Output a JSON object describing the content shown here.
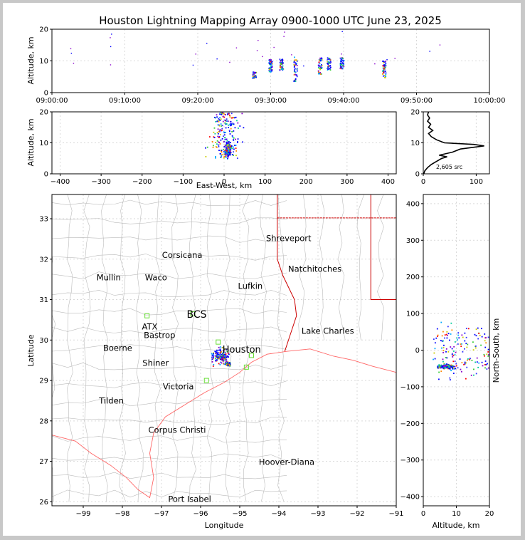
{
  "title": "Houston Lightning Mapping Array 0900-1000 UTC June 23, 2025",
  "colors": {
    "axis": "#000000",
    "grid": "#cccccc",
    "county": "#bbbbbb",
    "state": "#cc0000",
    "coast": "#ff6666",
    "sensor": "#66dd33"
  },
  "chart_data": [
    {
      "id": "time-altitude",
      "type": "scatter",
      "ylabel": "Altitude, km",
      "ylim": [
        0,
        20
      ],
      "yticks": [
        "0",
        "10",
        "20"
      ],
      "xticks": [
        "09:00:00",
        "09:10:00",
        "09:20:00",
        "09:30:00",
        "09:40:00",
        "09:50:00",
        "10:00:00"
      ],
      "xlim_min": [
        0,
        60
      ],
      "clusters": [
        {
          "t": 27.8,
          "alt_min": 4.5,
          "alt_max": 6.5
        },
        {
          "t": 30.0,
          "alt_min": 6.5,
          "alt_max": 10.5
        },
        {
          "t": 31.5,
          "alt_min": 7.0,
          "alt_max": 10.5
        },
        {
          "t": 33.4,
          "alt_min": 3.5,
          "alt_max": 12.0
        },
        {
          "t": 36.8,
          "alt_min": 5.5,
          "alt_max": 11.0
        },
        {
          "t": 38.0,
          "alt_min": 7.0,
          "alt_max": 11.0
        },
        {
          "t": 39.8,
          "alt_min": 7.5,
          "alt_max": 11.0
        },
        {
          "t": 45.6,
          "alt_min": 4.5,
          "alt_max": 10.0
        }
      ]
    },
    {
      "id": "ew-altitude",
      "type": "scatter",
      "xlabel": "East-West, km",
      "ylabel": "Altitude, km",
      "xlim": [
        -420,
        420
      ],
      "ylim": [
        0,
        20
      ],
      "xticks": [
        "−400",
        "−300",
        "−200",
        "−100",
        "0",
        "100",
        "200",
        "300",
        "400"
      ],
      "yticks": [
        "0",
        "10",
        "20"
      ]
    },
    {
      "id": "altitude-histogram",
      "type": "line",
      "xlim": [
        0,
        125
      ],
      "ylim": [
        0,
        20
      ],
      "xticks": [
        "0",
        "100"
      ],
      "yticks": [
        "0",
        "10",
        "20"
      ],
      "annotation": "2,605 src",
      "profile": [
        [
          1,
          0
        ],
        [
          3,
          1
        ],
        [
          8,
          2
        ],
        [
          15,
          3
        ],
        [
          25,
          4
        ],
        [
          35,
          5
        ],
        [
          45,
          5.5
        ],
        [
          30,
          6
        ],
        [
          55,
          7
        ],
        [
          70,
          8
        ],
        [
          115,
          9
        ],
        [
          95,
          9.5
        ],
        [
          40,
          10
        ],
        [
          25,
          11
        ],
        [
          15,
          12
        ],
        [
          10,
          13
        ],
        [
          18,
          14
        ],
        [
          10,
          15
        ],
        [
          14,
          16
        ],
        [
          8,
          17
        ],
        [
          12,
          18
        ],
        [
          8,
          19
        ],
        [
          10,
          20
        ]
      ]
    },
    {
      "id": "plan-map",
      "type": "scatter",
      "xlabel": "Longitude",
      "ylabel": "Latitude",
      "xlim": [
        -99.8,
        -91.0
      ],
      "ylim": [
        25.9,
        33.6
      ],
      "xticks": [
        "−99",
        "−98",
        "−97",
        "−96",
        "−95",
        "−94",
        "−93",
        "−92",
        "−91"
      ],
      "yticks": [
        "26",
        "27",
        "28",
        "29",
        "30",
        "31",
        "32",
        "33"
      ],
      "storm_center": [
        -95.3,
        29.4
      ],
      "cities": [
        {
          "name": "Shreveport",
          "lon": -93.75,
          "lat": 32.52,
          "color": "#000000"
        },
        {
          "name": "Corsicana",
          "lon": -96.47,
          "lat": 32.1,
          "color": "#000000"
        },
        {
          "name": "Natchitoches",
          "lon": -93.08,
          "lat": 31.76,
          "color": "#000000"
        },
        {
          "name": "Mullin",
          "lon": -98.35,
          "lat": 31.55,
          "color": "#ff8844"
        },
        {
          "name": "Waco",
          "lon": -97.14,
          "lat": 31.55,
          "color": "#000000"
        },
        {
          "name": "Lufkin",
          "lon": -94.73,
          "lat": 31.34,
          "color": "#000000"
        },
        {
          "name": "BCS",
          "lon": -96.1,
          "lat": 30.62,
          "color": "#8b0000"
        },
        {
          "name": "ATX",
          "lon": -97.3,
          "lat": 30.33,
          "color": "#ff8844"
        },
        {
          "name": "Bastrop",
          "lon": -97.05,
          "lat": 30.12,
          "color": "#000000"
        },
        {
          "name": "Lake Charles",
          "lon": -92.75,
          "lat": 30.23,
          "color": "#000000"
        },
        {
          "name": "Houston",
          "lon": -94.95,
          "lat": 29.76,
          "color": "#ddaa00"
        },
        {
          "name": "Boerne",
          "lon": -98.12,
          "lat": 29.8,
          "color": "#000000"
        },
        {
          "name": "Shiner",
          "lon": -97.15,
          "lat": 29.43,
          "color": "#000000"
        },
        {
          "name": "Victoria",
          "lon": -96.57,
          "lat": 28.85,
          "color": "#000000"
        },
        {
          "name": "Tilden",
          "lon": -98.28,
          "lat": 28.5,
          "color": "#000000"
        },
        {
          "name": "Corpus Christi",
          "lon": -96.6,
          "lat": 27.78,
          "color": "#000000"
        },
        {
          "name": "Hoover-Diana",
          "lon": -93.8,
          "lat": 26.98,
          "color": "#0000dd"
        },
        {
          "name": "Port Isabel",
          "lon": -96.28,
          "lat": 26.07,
          "color": "#000000"
        }
      ]
    },
    {
      "id": "ns-altitude",
      "type": "scatter",
      "xlabel": "Altitude, km",
      "ylabel": "North-South, km",
      "xlim": [
        0,
        20
      ],
      "ylim": [
        -425,
        425
      ],
      "xticks": [
        "0",
        "10",
        "20"
      ],
      "yticks": [
        "−400",
        "−300",
        "−200",
        "−100",
        "0",
        "100",
        "200",
        "300",
        "400"
      ]
    }
  ]
}
